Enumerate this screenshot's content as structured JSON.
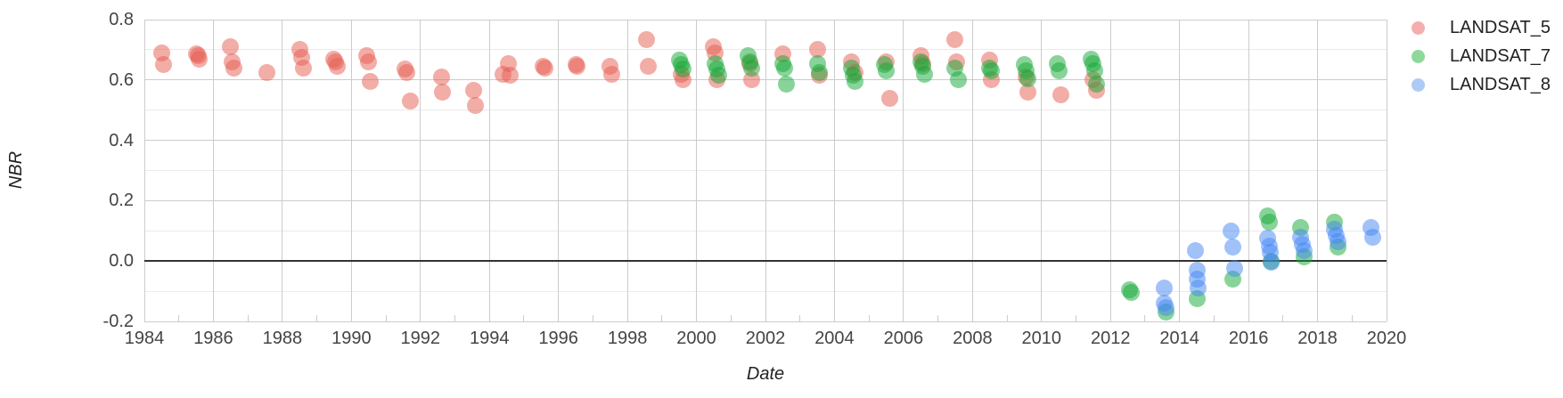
{
  "legend": {
    "items": [
      {
        "label": "LANDSAT_5",
        "color": "#f4aeae"
      },
      {
        "label": "LANDSAT_7",
        "color": "#8ed89b"
      },
      {
        "label": "LANDSAT_8",
        "color": "#aecbf5"
      }
    ]
  },
  "chart_data": {
    "type": "scatter",
    "title": "",
    "xlabel": "Date",
    "ylabel": "NBR",
    "xlim": [
      1984,
      2020
    ],
    "ylim": [
      -0.2,
      0.8
    ],
    "grid": true,
    "legend_position": "right",
    "x_ticks": [
      1984,
      1986,
      1988,
      1990,
      1992,
      1994,
      1996,
      1998,
      2000,
      2002,
      2004,
      2006,
      2008,
      2010,
      2012,
      2014,
      2016,
      2018,
      2020
    ],
    "x_minor_ticks": [
      1985,
      1987,
      1989,
      1991,
      1993,
      1995,
      1997,
      1999,
      2001,
      2003,
      2005,
      2007,
      2009,
      2011,
      2013,
      2015,
      2017,
      2019
    ],
    "y_ticks": [
      {
        "v": 0.8,
        "label": "0.8"
      },
      {
        "v": 0.6,
        "label": "0.6"
      },
      {
        "v": 0.4,
        "label": "0.4"
      },
      {
        "v": 0.2,
        "label": "0.2"
      },
      {
        "v": 0.0,
        "label": "0.0"
      },
      {
        "v": -0.2,
        "label": "-0.2"
      }
    ],
    "y_minor_ticks": [
      0.7,
      0.5,
      0.3,
      0.1,
      -0.1
    ],
    "baseline": 0.0,
    "point_opacity": 0.5,
    "series": [
      {
        "name": "LANDSAT_5",
        "color": "#e65c4f",
        "points": [
          [
            1984.5,
            0.69
          ],
          [
            1984.55,
            0.65
          ],
          [
            1985.5,
            0.685
          ],
          [
            1985.55,
            0.68
          ],
          [
            1985.6,
            0.67
          ],
          [
            1986.5,
            0.71
          ],
          [
            1986.55,
            0.66
          ],
          [
            1986.6,
            0.64
          ],
          [
            1987.55,
            0.625
          ],
          [
            1988.5,
            0.7
          ],
          [
            1988.55,
            0.675
          ],
          [
            1988.6,
            0.64
          ],
          [
            1989.5,
            0.67
          ],
          [
            1989.55,
            0.66
          ],
          [
            1989.6,
            0.645
          ],
          [
            1990.45,
            0.68
          ],
          [
            1990.5,
            0.66
          ],
          [
            1990.55,
            0.595
          ],
          [
            1991.55,
            0.635
          ],
          [
            1991.6,
            0.625
          ],
          [
            1991.7,
            0.53
          ],
          [
            1992.6,
            0.61
          ],
          [
            1992.65,
            0.56
          ],
          [
            1993.55,
            0.565
          ],
          [
            1993.6,
            0.515
          ],
          [
            1994.4,
            0.62
          ],
          [
            1994.55,
            0.655
          ],
          [
            1994.6,
            0.615
          ],
          [
            1995.55,
            0.645
          ],
          [
            1995.6,
            0.638
          ],
          [
            1996.5,
            0.65
          ],
          [
            1996.55,
            0.645
          ],
          [
            1997.5,
            0.645
          ],
          [
            1997.55,
            0.62
          ],
          [
            1998.55,
            0.735
          ],
          [
            1998.6,
            0.645
          ],
          [
            1999.55,
            0.62
          ],
          [
            1999.6,
            0.6
          ],
          [
            2000.5,
            0.71
          ],
          [
            2000.55,
            0.69
          ],
          [
            2000.6,
            0.6
          ],
          [
            2001.55,
            0.655
          ],
          [
            2001.6,
            0.6
          ],
          [
            2002.5,
            0.685
          ],
          [
            2003.5,
            0.7
          ],
          [
            2003.55,
            0.615
          ],
          [
            2004.5,
            0.66
          ],
          [
            2004.6,
            0.625
          ],
          [
            2005.5,
            0.66
          ],
          [
            2005.6,
            0.54
          ],
          [
            2006.5,
            0.68
          ],
          [
            2006.55,
            0.655
          ],
          [
            2007.5,
            0.735
          ],
          [
            2007.55,
            0.66
          ],
          [
            2008.5,
            0.665
          ],
          [
            2008.55,
            0.6
          ],
          [
            2009.55,
            0.61
          ],
          [
            2009.6,
            0.56
          ],
          [
            2010.55,
            0.55
          ],
          [
            2011.5,
            0.6
          ],
          [
            2011.6,
            0.565
          ]
        ]
      },
      {
        "name": "LANDSAT_7",
        "color": "#12a834",
        "points": [
          [
            1999.5,
            0.665
          ],
          [
            1999.55,
            0.65
          ],
          [
            1999.6,
            0.635
          ],
          [
            2000.55,
            0.655
          ],
          [
            2000.6,
            0.635
          ],
          [
            2000.65,
            0.615
          ],
          [
            2001.5,
            0.68
          ],
          [
            2001.55,
            0.66
          ],
          [
            2001.6,
            0.64
          ],
          [
            2002.5,
            0.655
          ],
          [
            2002.55,
            0.64
          ],
          [
            2002.6,
            0.585
          ],
          [
            2003.5,
            0.655
          ],
          [
            2003.55,
            0.625
          ],
          [
            2004.5,
            0.64
          ],
          [
            2004.55,
            0.615
          ],
          [
            2004.6,
            0.595
          ],
          [
            2005.45,
            0.65
          ],
          [
            2005.5,
            0.63
          ],
          [
            2006.5,
            0.66
          ],
          [
            2006.55,
            0.645
          ],
          [
            2006.6,
            0.62
          ],
          [
            2007.5,
            0.64
          ],
          [
            2007.6,
            0.6
          ],
          [
            2008.5,
            0.64
          ],
          [
            2008.55,
            0.63
          ],
          [
            2009.5,
            0.65
          ],
          [
            2009.55,
            0.63
          ],
          [
            2009.6,
            0.605
          ],
          [
            2010.45,
            0.655
          ],
          [
            2010.5,
            0.63
          ],
          [
            2011.45,
            0.67
          ],
          [
            2011.5,
            0.655
          ],
          [
            2011.55,
            0.63
          ],
          [
            2011.6,
            0.585
          ],
          [
            2012.55,
            -0.095
          ],
          [
            2012.6,
            -0.105
          ],
          [
            2013.6,
            -0.17
          ],
          [
            2014.5,
            -0.125
          ],
          [
            2015.55,
            -0.06
          ],
          [
            2016.55,
            0.15
          ],
          [
            2016.6,
            0.13
          ],
          [
            2016.65,
            0.0
          ],
          [
            2017.5,
            0.11
          ],
          [
            2017.6,
            0.015
          ],
          [
            2018.5,
            0.13
          ],
          [
            2018.6,
            0.045
          ]
        ]
      },
      {
        "name": "LANDSAT_8",
        "color": "#4285f4",
        "points": [
          [
            2013.55,
            -0.09
          ],
          [
            2013.55,
            -0.14
          ],
          [
            2013.6,
            -0.155
          ],
          [
            2014.45,
            0.035
          ],
          [
            2014.5,
            -0.03
          ],
          [
            2014.5,
            -0.06
          ],
          [
            2014.55,
            -0.09
          ],
          [
            2015.5,
            0.1
          ],
          [
            2015.55,
            0.045
          ],
          [
            2015.6,
            -0.025
          ],
          [
            2016.55,
            0.075
          ],
          [
            2016.6,
            0.05
          ],
          [
            2016.62,
            0.03
          ],
          [
            2016.65,
            -0.005
          ],
          [
            2017.5,
            0.08
          ],
          [
            2017.55,
            0.055
          ],
          [
            2017.6,
            0.035
          ],
          [
            2018.5,
            0.105
          ],
          [
            2018.55,
            0.085
          ],
          [
            2018.6,
            0.065
          ],
          [
            2019.55,
            0.11
          ],
          [
            2019.6,
            0.08
          ]
        ]
      }
    ]
  }
}
